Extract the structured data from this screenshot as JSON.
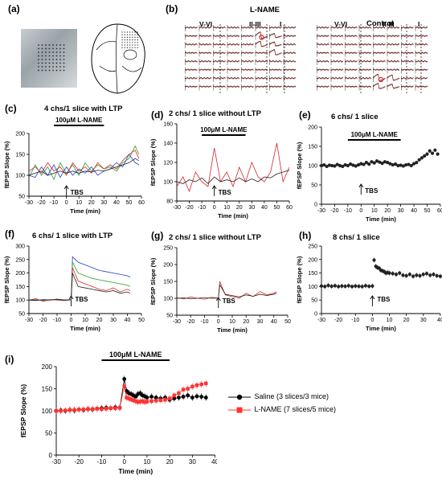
{
  "panel_labels": {
    "a": "(a)",
    "b": "(b)",
    "c": "(c)",
    "d": "(d)",
    "e": "(e)",
    "f": "(f)",
    "g": "(g)",
    "h": "(h)",
    "i": "(i)"
  },
  "panel_b": {
    "left_title": "L-NAME",
    "right_title": "Control",
    "layer_labels": [
      "V-VI",
      "II-III",
      "I"
    ]
  },
  "common": {
    "ylabel": "fEPSP Slope (%)",
    "xlabel": "Time (min)",
    "tbs": "TBS",
    "drug_bar": "100μM L-NAME"
  },
  "colors": {
    "green": "#2ca02c",
    "blue": "#1f3fd6",
    "red": "#d62728",
    "black": "#222222",
    "saline": "#000000",
    "lname": "#ff3333"
  },
  "chart_data": [
    {
      "id": "c",
      "type": "line",
      "title": "4 chs/1 slice with LTP",
      "xlabel": "Time (min)",
      "ylabel": "fEPSP Slope (%)",
      "xlim": [
        -30,
        60
      ],
      "ylim": [
        50,
        200
      ],
      "xticks": [
        -30,
        -20,
        -10,
        0,
        10,
        20,
        30,
        40,
        50,
        60
      ],
      "yticks": [
        50,
        100,
        150,
        200
      ],
      "bar": {
        "label": "100μM L-NAME",
        "from": -10,
        "to": 30
      },
      "tbs_at": 0,
      "series": [
        {
          "color": "green",
          "x": [
            -30,
            -25,
            -20,
            -15,
            -10,
            -5,
            0,
            5,
            10,
            15,
            20,
            25,
            30,
            35,
            40,
            45,
            50,
            55,
            58
          ],
          "y": [
            95,
            125,
            100,
            120,
            90,
            130,
            105,
            125,
            100,
            130,
            110,
            125,
            115,
            120,
            110,
            130,
            140,
            170,
            150
          ]
        },
        {
          "color": "blue",
          "x": [
            -30,
            -25,
            -20,
            -15,
            -10,
            -5,
            0,
            5,
            10,
            15,
            20,
            25,
            30,
            35,
            40,
            45,
            50,
            55,
            58
          ],
          "y": [
            100,
            95,
            120,
            100,
            125,
            95,
            120,
            100,
            115,
            105,
            120,
            100,
            110,
            115,
            130,
            120,
            150,
            130,
            125
          ]
        },
        {
          "color": "red",
          "x": [
            -30,
            -25,
            -20,
            -15,
            -10,
            -5,
            0,
            5,
            10,
            15,
            20,
            25,
            30,
            35,
            40,
            45,
            50,
            55,
            58
          ],
          "y": [
            110,
            120,
            105,
            130,
            110,
            120,
            100,
            130,
            110,
            120,
            105,
            130,
            115,
            125,
            115,
            135,
            150,
            160,
            140
          ]
        },
        {
          "color": "black",
          "x": [
            -30,
            -25,
            -20,
            -15,
            -10,
            -5,
            0,
            5,
            10,
            15,
            20,
            25,
            30,
            35,
            40,
            45,
            50,
            55,
            58
          ],
          "y": [
            100,
            105,
            110,
            100,
            105,
            110,
            105,
            110,
            105,
            110,
            108,
            112,
            110,
            115,
            120,
            125,
            130,
            140,
            135
          ]
        }
      ]
    },
    {
      "id": "d",
      "type": "line",
      "title": "2 chs/ 1 slice without LTP",
      "xlabel": "Time (min)",
      "ylabel": "fEPSP Slope (%)",
      "xlim": [
        -30,
        60
      ],
      "ylim": [
        80,
        160
      ],
      "xticks": [
        -30,
        -20,
        -10,
        0,
        10,
        20,
        30,
        40,
        50,
        60
      ],
      "yticks": [
        80,
        100,
        120,
        140,
        160
      ],
      "bar": {
        "label": "100μM L-NAME",
        "from": -10,
        "to": 25
      },
      "tbs_at": 0,
      "series": [
        {
          "color": "red",
          "x": [
            -30,
            -25,
            -20,
            -15,
            -10,
            -5,
            0,
            5,
            10,
            15,
            20,
            25,
            30,
            35,
            40,
            45,
            50,
            55,
            60
          ],
          "y": [
            95,
            105,
            90,
            110,
            100,
            95,
            135,
            100,
            110,
            95,
            115,
            100,
            120,
            105,
            100,
            110,
            140,
            100,
            115
          ]
        },
        {
          "color": "black",
          "x": [
            -30,
            -25,
            -20,
            -15,
            -10,
            -5,
            0,
            5,
            10,
            15,
            20,
            25,
            30,
            35,
            40,
            45,
            50,
            55,
            60
          ],
          "y": [
            100,
            98,
            102,
            100,
            104,
            98,
            105,
            100,
            102,
            100,
            104,
            100,
            103,
            100,
            105,
            104,
            108,
            110,
            112
          ]
        }
      ]
    },
    {
      "id": "e",
      "type": "scatter",
      "title": "6 chs/ 1 slice",
      "xlabel": "Time (min)",
      "ylabel": "fEPSP Slope (%)",
      "xlim": [
        -30,
        60
      ],
      "ylim": [
        0,
        200
      ],
      "xticks": [
        -30,
        -20,
        -10,
        0,
        10,
        20,
        30,
        40,
        50,
        60
      ],
      "yticks": [
        0,
        50,
        100,
        150,
        200
      ],
      "bar": {
        "label": "100μM L-NAME",
        "from": -10,
        "to": 30
      },
      "tbs_at": 0,
      "series": [
        {
          "color": "black",
          "x": [
            -30,
            -28,
            -26,
            -24,
            -22,
            -20,
            -18,
            -16,
            -14,
            -12,
            -10,
            -8,
            -6,
            -4,
            -2,
            0,
            2,
            4,
            6,
            8,
            10,
            12,
            14,
            16,
            18,
            20,
            22,
            24,
            26,
            28,
            30,
            32,
            34,
            36,
            38,
            40,
            42,
            44,
            46,
            48,
            50,
            52,
            54,
            56,
            58
          ],
          "y": [
            100,
            102,
            98,
            101,
            100,
            99,
            103,
            100,
            98,
            102,
            100,
            104,
            101,
            99,
            102,
            105,
            103,
            108,
            104,
            110,
            107,
            112,
            109,
            106,
            110,
            108,
            105,
            102,
            104,
            100,
            101,
            99,
            102,
            103,
            100,
            105,
            108,
            115,
            120,
            125,
            130,
            138,
            132,
            140,
            130
          ]
        }
      ]
    },
    {
      "id": "f",
      "type": "line",
      "title": "6 chs/ 1 slice with LTP",
      "xlabel": "Time (min)",
      "ylabel": "fEPSP Slope (%)",
      "xlim": [
        -30,
        50
      ],
      "ylim": [
        50,
        300
      ],
      "xticks": [
        -30,
        -20,
        -10,
        0,
        10,
        20,
        30,
        40,
        50
      ],
      "yticks": [
        50,
        100,
        150,
        200,
        250,
        300
      ],
      "tbs_at": 0,
      "series": [
        {
          "color": "blue",
          "x": [
            -30,
            -25,
            -20,
            -15,
            -10,
            -5,
            0,
            1,
            5,
            10,
            15,
            20,
            25,
            30,
            35,
            40,
            42
          ],
          "y": [
            100,
            98,
            102,
            100,
            104,
            100,
            102,
            260,
            240,
            230,
            220,
            210,
            205,
            200,
            195,
            190,
            185
          ]
        },
        {
          "color": "green",
          "x": [
            -30,
            -25,
            -20,
            -15,
            -10,
            -5,
            0,
            1,
            5,
            10,
            15,
            20,
            25,
            30,
            35,
            40,
            42
          ],
          "y": [
            100,
            102,
            98,
            100,
            103,
            101,
            100,
            240,
            200,
            190,
            180,
            175,
            170,
            165,
            160,
            155,
            150
          ]
        },
        {
          "color": "red",
          "x": [
            -30,
            -25,
            -20,
            -15,
            -10,
            -5,
            0,
            1,
            5,
            10,
            15,
            20,
            25,
            30,
            35,
            40,
            42
          ],
          "y": [
            100,
            105,
            95,
            102,
            100,
            98,
            101,
            220,
            170,
            160,
            150,
            140,
            135,
            145,
            130,
            140,
            135
          ]
        },
        {
          "color": "black",
          "x": [
            -30,
            -25,
            -20,
            -15,
            -10,
            -5,
            0,
            1,
            5,
            10,
            15,
            20,
            25,
            30,
            35,
            40,
            42
          ],
          "y": [
            100,
            99,
            101,
            100,
            102,
            100,
            101,
            200,
            150,
            145,
            140,
            135,
            130,
            135,
            125,
            130,
            125
          ]
        }
      ]
    },
    {
      "id": "g",
      "type": "line",
      "title": "2 chs/ 1 slice without LTP",
      "xlabel": "Time (min)",
      "ylabel": "fEPSP Slope (%)",
      "xlim": [
        -30,
        50
      ],
      "ylim": [
        50,
        250
      ],
      "xticks": [
        -30,
        -20,
        -10,
        0,
        10,
        20,
        30,
        40,
        50
      ],
      "yticks": [
        50,
        100,
        150,
        200,
        250
      ],
      "tbs_at": 0,
      "series": [
        {
          "color": "red",
          "x": [
            -30,
            -25,
            -20,
            -15,
            -10,
            -5,
            0,
            1,
            5,
            10,
            15,
            20,
            25,
            30,
            35,
            40,
            42
          ],
          "y": [
            102,
            98,
            104,
            100,
            97,
            103,
            100,
            150,
            110,
            105,
            100,
            115,
            105,
            120,
            110,
            115,
            120
          ]
        },
        {
          "color": "black",
          "x": [
            -30,
            -25,
            -20,
            -15,
            -10,
            -5,
            0,
            1,
            5,
            10,
            15,
            20,
            25,
            30,
            35,
            40,
            42
          ],
          "y": [
            100,
            101,
            99,
            100,
            102,
            100,
            101,
            140,
            112,
            108,
            104,
            110,
            106,
            112,
            108,
            112,
            115
          ]
        }
      ]
    },
    {
      "id": "h",
      "type": "scatter",
      "title": "8 chs/ 1 slice",
      "xlabel": "Time (min)",
      "ylabel": "fEPSP Slope (%)",
      "xlim": [
        -30,
        40
      ],
      "ylim": [
        0,
        250
      ],
      "xticks": [
        -30,
        -20,
        -10,
        0,
        10,
        20,
        30,
        40
      ],
      "yticks": [
        0,
        50,
        100,
        150,
        200,
        250
      ],
      "tbs_at": 0,
      "series": [
        {
          "color": "black",
          "x": [
            -30,
            -28,
            -26,
            -24,
            -22,
            -20,
            -18,
            -16,
            -14,
            -12,
            -10,
            -8,
            -6,
            -4,
            -2,
            0,
            1,
            2,
            3,
            4,
            5,
            6,
            7,
            8,
            9,
            10,
            12,
            14,
            16,
            18,
            20,
            22,
            24,
            26,
            28,
            30,
            32,
            34,
            36,
            38,
            40
          ],
          "y": [
            102,
            100,
            104,
            101,
            103,
            100,
            102,
            101,
            103,
            100,
            102,
            101,
            100,
            103,
            101,
            102,
            198,
            175,
            170,
            168,
            160,
            158,
            155,
            150,
            152,
            150,
            148,
            145,
            150,
            142,
            140,
            145,
            138,
            142,
            140,
            145,
            148,
            142,
            145,
            140,
            138
          ]
        }
      ]
    },
    {
      "id": "i",
      "type": "scatter",
      "title": "",
      "xlabel": "Time (min)",
      "ylabel": "fEPSP Slope (%)",
      "xlim": [
        -30,
        40
      ],
      "ylim": [
        0,
        200
      ],
      "xticks": [
        -30,
        -20,
        -10,
        0,
        10,
        20,
        30,
        40
      ],
      "yticks": [
        0,
        50,
        100,
        150,
        200
      ],
      "bar": {
        "label": "100μM L-NAME",
        "from": -10,
        "to": 20
      },
      "legend": "right",
      "series": [
        {
          "name": "Saline  (3 slices/3 mice)",
          "color": "saline",
          "marker": "circle",
          "x": [
            -30,
            -28,
            -26,
            -24,
            -22,
            -20,
            -18,
            -16,
            -14,
            -12,
            -10,
            -8,
            -6,
            -4,
            -2,
            0,
            1,
            2,
            3,
            4,
            5,
            6,
            7,
            8,
            9,
            10,
            12,
            14,
            16,
            18,
            20,
            22,
            24,
            26,
            28,
            30,
            32,
            34,
            36
          ],
          "y": [
            100,
            101,
            100,
            102,
            101,
            103,
            102,
            104,
            103,
            105,
            106,
            107,
            106,
            108,
            107,
            172,
            145,
            140,
            138,
            135,
            132,
            138,
            140,
            135,
            133,
            130,
            132,
            130,
            128,
            130,
            125,
            128,
            130,
            132,
            135,
            130,
            133,
            132,
            130
          ]
        },
        {
          "name": "L-NAME (7 slices/5 mice)",
          "color": "lname",
          "marker": "square",
          "x": [
            -30,
            -28,
            -26,
            -24,
            -22,
            -20,
            -18,
            -16,
            -14,
            -12,
            -10,
            -8,
            -6,
            -4,
            -2,
            0,
            1,
            2,
            3,
            4,
            5,
            6,
            7,
            8,
            9,
            10,
            12,
            14,
            16,
            18,
            20,
            22,
            24,
            26,
            28,
            30,
            32,
            34,
            36
          ],
          "y": [
            100,
            100,
            101,
            102,
            102,
            103,
            103,
            104,
            104,
            105,
            104,
            105,
            106,
            106,
            107,
            155,
            130,
            128,
            126,
            124,
            122,
            120,
            121,
            122,
            120,
            121,
            122,
            123,
            124,
            125,
            128,
            135,
            140,
            148,
            150,
            155,
            158,
            160,
            162
          ]
        }
      ]
    }
  ]
}
